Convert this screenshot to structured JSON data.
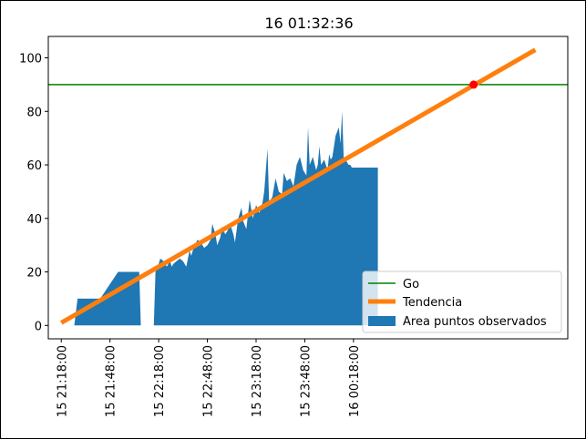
{
  "chart_data": {
    "type": "area",
    "title": "16 01:32:36",
    "xlabel": "",
    "ylabel": "",
    "xlim_minutes": [
      -8,
      312
    ],
    "ylim": [
      -5,
      108
    ],
    "grid": false,
    "legend_placement": "lower-right",
    "y_ticks": [
      0,
      20,
      40,
      60,
      80,
      100
    ],
    "x_ticks": [
      {
        "minute": 0,
        "label": "15 21:18:00"
      },
      {
        "minute": 30,
        "label": "15 21:48:00"
      },
      {
        "minute": 60,
        "label": "15 22:18:00"
      },
      {
        "minute": 90,
        "label": "15 22:48:00"
      },
      {
        "minute": 120,
        "label": "15 23:18:00"
      },
      {
        "minute": 150,
        "label": "15 23:48:00"
      },
      {
        "minute": 180,
        "label": "16 00:18:00"
      }
    ],
    "series": [
      {
        "name": "Go",
        "kind": "hline",
        "y": 90,
        "color": "#008000"
      },
      {
        "name": "Tendencia",
        "kind": "line",
        "color": "#ff7f0e",
        "x": [
          0,
          292
        ],
        "y": [
          1,
          103
        ]
      },
      {
        "name": "Area puntos observados",
        "kind": "area",
        "color": "#1f77b4",
        "x": [
          8,
          10,
          22,
          24,
          35,
          37,
          38,
          42,
          48,
          49,
          48,
          57,
          58,
          60,
          61,
          63,
          65,
          67,
          68,
          69,
          71,
          73,
          75,
          76,
          77,
          78,
          79,
          80,
          82,
          84,
          86,
          88,
          90,
          92,
          93,
          95,
          96,
          98,
          99,
          101,
          103,
          104,
          106,
          107,
          109,
          111,
          112,
          114,
          116,
          118,
          120,
          122,
          124,
          125,
          127,
          128,
          129,
          130,
          132,
          134,
          136,
          137,
          139,
          141,
          143,
          145,
          147,
          149,
          151,
          152,
          153,
          155,
          157,
          158,
          159,
          160,
          162,
          164,
          165,
          166,
          167,
          169,
          171,
          172,
          173,
          174,
          175,
          177,
          178,
          179,
          180,
          182,
          184,
          186,
          188,
          190,
          192,
          194,
          195,
          195,
          190,
          185,
          180,
          150,
          120,
          100,
          80,
          58
        ],
        "y": [
          0,
          10,
          10,
          10,
          20,
          20,
          20,
          20,
          20,
          0,
          0,
          0,
          20,
          23,
          25,
          24,
          22,
          24,
          22,
          23,
          24,
          25,
          24,
          23,
          22,
          25,
          28,
          26,
          30,
          32,
          31,
          29,
          30,
          32,
          38,
          34,
          30,
          33,
          37,
          34,
          36,
          38,
          34,
          31,
          40,
          44,
          39,
          36,
          47,
          40,
          45,
          42,
          46,
          50,
          66,
          46,
          47,
          48,
          55,
          50,
          49,
          57,
          54,
          55,
          52,
          60,
          63,
          58,
          56,
          74,
          60,
          63,
          58,
          60,
          67,
          60,
          62,
          58,
          64,
          62,
          63,
          71,
          74,
          68,
          80,
          62,
          62,
          60,
          60,
          59,
          59,
          59,
          59,
          59,
          59,
          59,
          59,
          59,
          59,
          0,
          0,
          0,
          0,
          0,
          0,
          0,
          0,
          0
        ]
      },
      {
        "name": "",
        "kind": "point",
        "color": "#ff0000",
        "x": [
          254
        ],
        "y": [
          90
        ]
      }
    ]
  },
  "legend": {
    "go": "Go",
    "tendencia": "Tendencia",
    "area": "Area puntos observados"
  }
}
